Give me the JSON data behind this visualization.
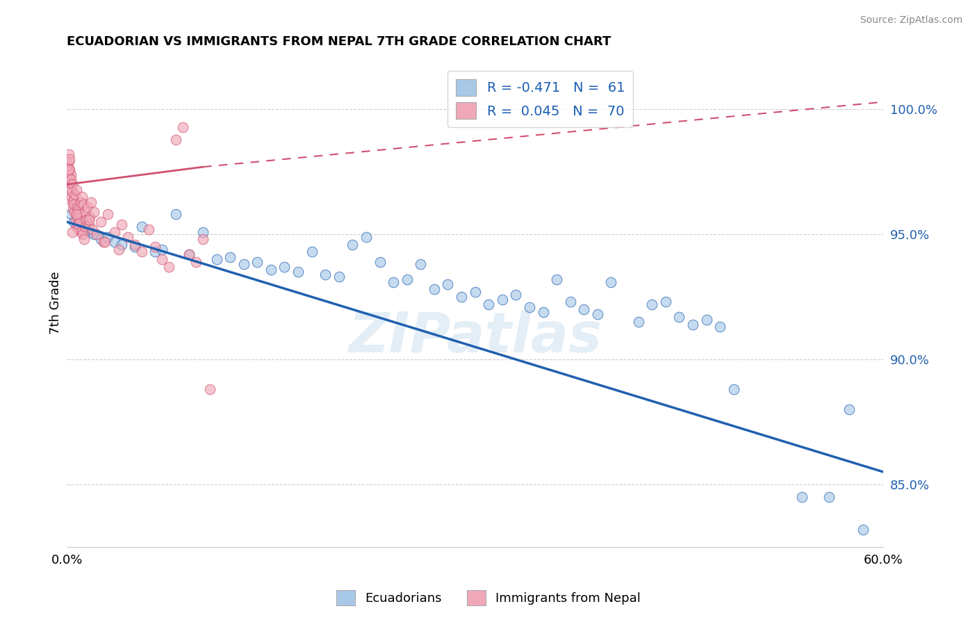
{
  "title": "ECUADORIAN VS IMMIGRANTS FROM NEPAL 7TH GRADE CORRELATION CHART",
  "source": "Source: ZipAtlas.com",
  "ylabel": "7th Grade",
  "yticks": [
    85.0,
    90.0,
    95.0,
    100.0
  ],
  "ytick_labels": [
    "85.0%",
    "90.0%",
    "95.0%",
    "100.0%"
  ],
  "xmin": 0.0,
  "xmax": 60.0,
  "ymin": 82.5,
  "ymax": 102.0,
  "blue_color": "#a8c8e8",
  "blue_line_color": "#2060b0",
  "pink_color": "#f0a8b8",
  "pink_line_color": "#d05070",
  "legend_blue_label": "R = -0.471   N =  61",
  "legend_pink_label": "R =  0.045   N =  70",
  "watermark": "ZIPatlas",
  "blue_line_x0": 0.0,
  "blue_line_y0": 95.5,
  "blue_line_x1": 60.0,
  "blue_line_y1": 85.5,
  "pink_solid_x0": 0.0,
  "pink_solid_y0": 97.0,
  "pink_solid_x1": 10.0,
  "pink_solid_y1": 97.7,
  "pink_dash_x0": 10.0,
  "pink_dash_y0": 97.7,
  "pink_dash_x1": 60.0,
  "pink_dash_y1": 100.3,
  "blue_scatter_x": [
    0.3,
    0.5,
    0.8,
    1.0,
    1.2,
    1.5,
    1.8,
    2.0,
    2.5,
    3.0,
    3.5,
    4.0,
    5.0,
    5.5,
    6.5,
    7.0,
    8.0,
    9.0,
    10.0,
    11.0,
    12.0,
    13.0,
    14.0,
    15.0,
    16.0,
    17.0,
    18.0,
    19.0,
    20.0,
    21.0,
    22.0,
    23.0,
    24.0,
    25.0,
    26.0,
    27.0,
    28.0,
    29.0,
    30.0,
    31.0,
    32.0,
    33.0,
    34.0,
    35.0,
    36.0,
    37.0,
    38.0,
    39.0,
    40.0,
    42.0,
    43.0,
    44.0,
    45.0,
    46.0,
    47.0,
    48.0,
    49.0,
    54.0,
    56.0,
    57.5,
    58.5
  ],
  "blue_scatter_y": [
    95.8,
    95.5,
    95.6,
    95.4,
    95.3,
    95.2,
    95.1,
    95.0,
    94.8,
    94.9,
    94.7,
    94.6,
    94.5,
    95.3,
    94.3,
    94.4,
    95.8,
    94.2,
    95.1,
    94.0,
    94.1,
    93.8,
    93.9,
    93.6,
    93.7,
    93.5,
    94.3,
    93.4,
    93.3,
    94.6,
    94.9,
    93.9,
    93.1,
    93.2,
    93.8,
    92.8,
    93.0,
    92.5,
    92.7,
    92.2,
    92.4,
    92.6,
    92.1,
    91.9,
    93.2,
    92.3,
    92.0,
    91.8,
    93.1,
    91.5,
    92.2,
    92.3,
    91.7,
    91.4,
    91.6,
    91.3,
    88.8,
    84.5,
    84.5,
    88.0,
    83.2
  ],
  "pink_scatter_x": [
    0.05,
    0.1,
    0.12,
    0.15,
    0.18,
    0.2,
    0.22,
    0.25,
    0.28,
    0.3,
    0.32,
    0.35,
    0.38,
    0.4,
    0.42,
    0.45,
    0.48,
    0.5,
    0.55,
    0.6,
    0.65,
    0.7,
    0.72,
    0.75,
    0.78,
    0.8,
    0.85,
    0.88,
    0.9,
    0.95,
    1.0,
    1.05,
    1.1,
    1.15,
    1.2,
    1.25,
    1.3,
    1.35,
    1.4,
    1.5,
    1.6,
    1.7,
    1.8,
    1.9,
    2.0,
    2.2,
    2.5,
    2.7,
    3.0,
    3.5,
    4.0,
    4.5,
    5.0,
    5.5,
    6.0,
    6.5,
    7.0,
    7.5,
    8.0,
    8.5,
    9.0,
    9.5,
    10.0,
    10.5,
    3.8,
    2.8,
    1.65,
    0.68,
    0.42,
    0.16
  ],
  "pink_scatter_y": [
    97.8,
    97.5,
    98.2,
    97.9,
    98.0,
    97.3,
    97.6,
    97.1,
    97.4,
    96.8,
    97.2,
    96.5,
    97.0,
    96.3,
    96.7,
    96.0,
    96.4,
    96.2,
    95.9,
    96.6,
    95.6,
    96.8,
    95.3,
    96.1,
    95.7,
    95.4,
    96.0,
    95.2,
    95.8,
    95.5,
    96.3,
    95.1,
    96.5,
    95.0,
    96.2,
    94.8,
    95.9,
    95.3,
    95.6,
    96.1,
    95.4,
    95.7,
    96.3,
    95.2,
    95.9,
    95.0,
    95.5,
    94.7,
    95.8,
    95.1,
    95.4,
    94.9,
    94.6,
    94.3,
    95.2,
    94.5,
    94.0,
    93.7,
    98.8,
    99.3,
    94.2,
    93.9,
    94.8,
    88.8,
    94.4,
    94.7,
    95.6,
    95.8,
    95.1,
    97.6
  ]
}
